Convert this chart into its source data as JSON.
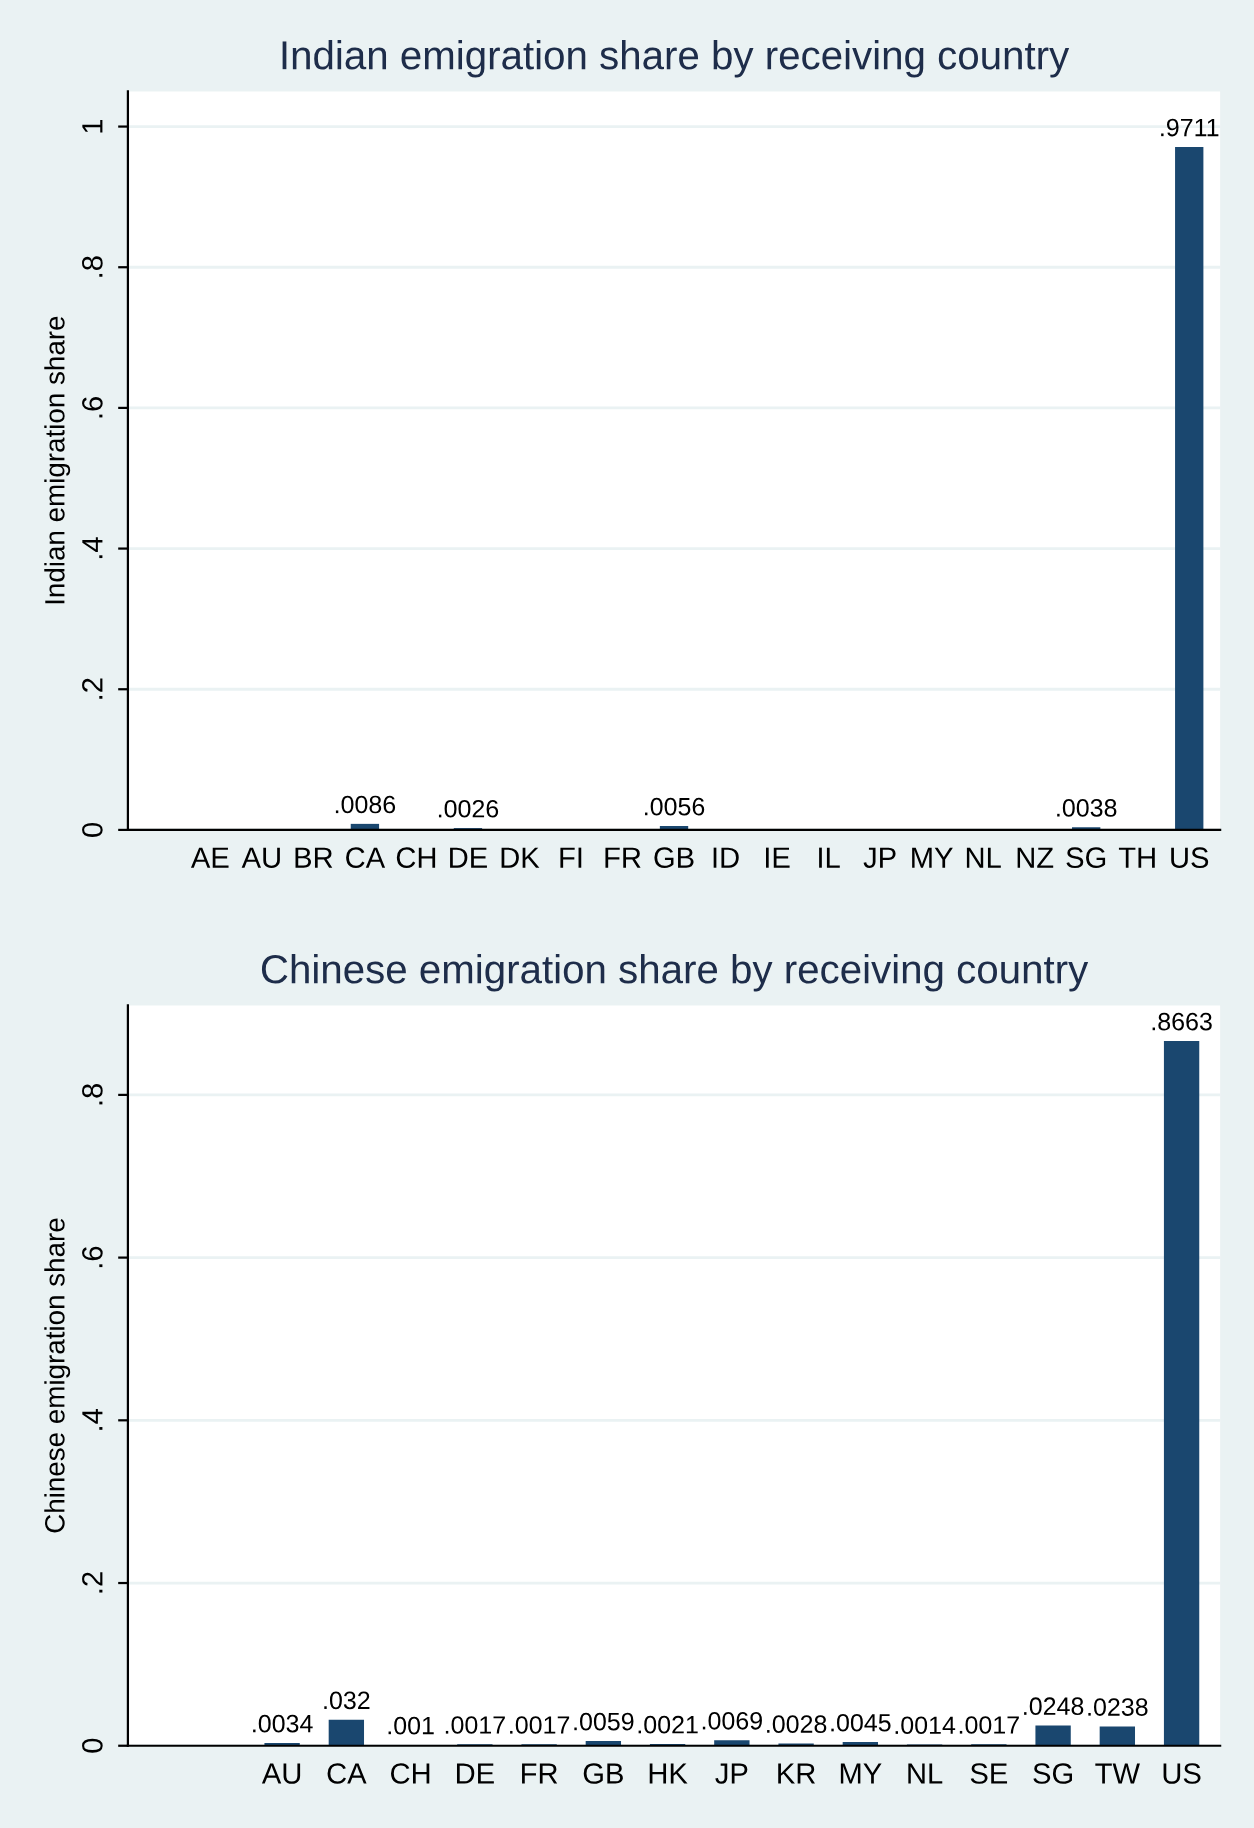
{
  "chart_data": [
    {
      "type": "bar",
      "title": "Indian emigration share by receiving country",
      "ylabel": "Indian emigration share",
      "categories": [
        null,
        "AE",
        "AU",
        "BR",
        "CA",
        "CH",
        "DE",
        "DK",
        "FI",
        "FR",
        "GB",
        "ID",
        "IE",
        "IL",
        "JP",
        "MY",
        "NL",
        "NZ",
        "SG",
        "TH",
        "US"
      ],
      "values": [
        0.0005,
        0.0005,
        0.0005,
        0.0005,
        0.0086,
        0.0005,
        0.0026,
        0.0005,
        0.0005,
        0.0005,
        0.0056,
        0.0005,
        0.0005,
        0.0005,
        0.0005,
        0.0005,
        0.0005,
        0.0005,
        0.0038,
        0.0005,
        0.9711
      ],
      "value_labels": [
        null,
        null,
        null,
        null,
        ".0086",
        null,
        ".0026",
        null,
        null,
        null,
        ".0056",
        null,
        null,
        null,
        null,
        null,
        null,
        null,
        ".0038",
        null,
        ".9711"
      ],
      "color": "#1a476f",
      "ylim": [
        0,
        1.05
      ],
      "yticks": [
        0,
        {
          "value": 0.2,
          "label": ".2"
        },
        {
          "value": 0.4,
          "label": ".4"
        },
        {
          "value": 0.6,
          "label": ".6"
        },
        {
          "value": 0.8,
          "label": ".8"
        },
        1
      ],
      "grid": "y"
    },
    {
      "type": "bar",
      "title": "Chinese emigration share by receiving country",
      "ylabel": "Chinese emigration share",
      "categories": [
        "AU",
        "CA",
        "CH",
        "DE",
        "FR",
        "GB",
        "HK",
        "JP",
        "KR",
        "MY",
        "NL",
        "SE",
        "SG",
        "TW",
        "US"
      ],
      "values": [
        0.0034,
        0.032,
        0.001,
        0.0017,
        0.0017,
        0.0059,
        0.0021,
        0.0069,
        0.0028,
        0.0045,
        0.0014,
        0.0017,
        0.0248,
        0.0238,
        0.8663
      ],
      "value_labels": [
        ".0034",
        ".032",
        ".001",
        ".0017",
        ".0017",
        ".0059",
        ".0021",
        ".0069",
        ".0028",
        ".0045",
        ".0014",
        ".0017",
        ".0248",
        ".0238",
        ".8663"
      ],
      "color": "#1a476f",
      "ylim": [
        0,
        0.91
      ],
      "yticks": [
        0,
        {
          "value": 0.2,
          "label": ".2"
        },
        {
          "value": 0.4,
          "label": ".4"
        },
        {
          "value": 0.6,
          "label": ".6"
        },
        {
          "value": 0.8,
          "label": ".8"
        }
      ],
      "grid": "y"
    }
  ]
}
